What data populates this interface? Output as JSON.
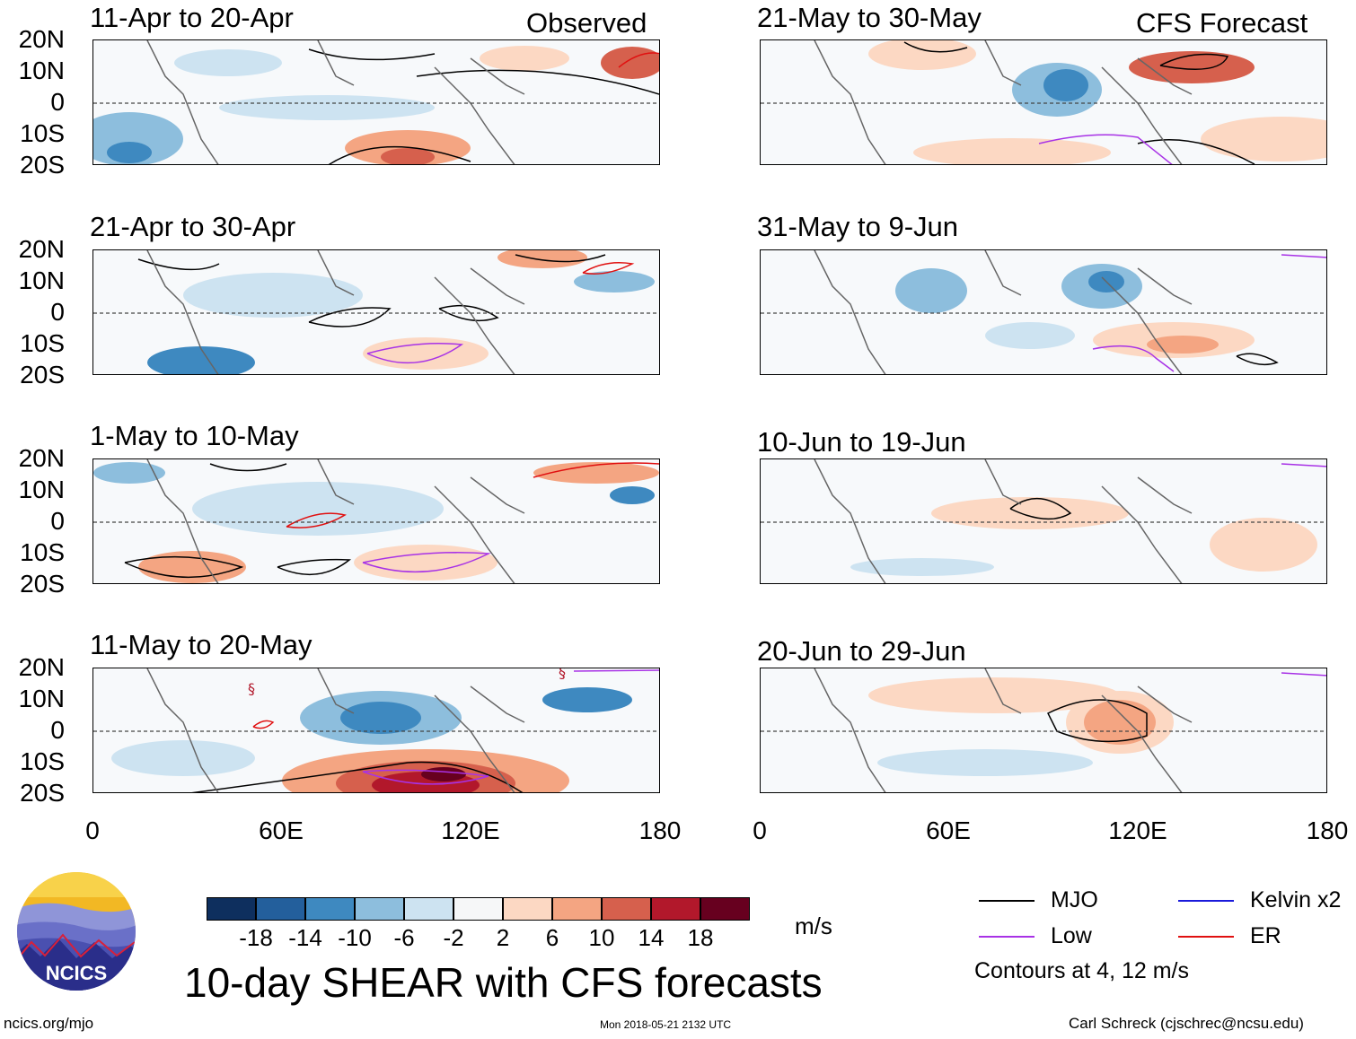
{
  "panels": [
    {
      "title": "11-Apr to 20-Apr",
      "corner": "Observed"
    },
    {
      "title": "21-Apr to 30-Apr"
    },
    {
      "title": "1-May to 10-May"
    },
    {
      "title": "11-May to 20-May"
    },
    {
      "title": "21-May to 30-May",
      "corner": "CFS Forecast"
    },
    {
      "title": "31-May to 9-Jun"
    },
    {
      "title": "10-Jun to 19-Jun"
    },
    {
      "title": "20-Jun to 29-Jun"
    }
  ],
  "y_labels": [
    "20N",
    "10N",
    "0",
    "10S",
    "20S"
  ],
  "x_labels": [
    "0",
    "60E",
    "120E",
    "180"
  ],
  "colorbar": {
    "colors": [
      "#0e2f5e",
      "#235f9c",
      "#3e89c0",
      "#8dbedd",
      "#cde3f1",
      "#f6f7f8",
      "#fcd8c3",
      "#f4a582",
      "#d6604d",
      "#b2182b",
      "#67001f"
    ],
    "labels": [
      "-18",
      "-14",
      "-10",
      "-6",
      "-2",
      "2",
      "6",
      "10",
      "14",
      "18"
    ],
    "unit": "m/s"
  },
  "legend": {
    "items": [
      {
        "label": "MJO",
        "color": "#000000"
      },
      {
        "label": "Kelvin x2",
        "color": "#1a1adb"
      },
      {
        "label": "Low",
        "color": "#a832e6"
      },
      {
        "label": "ER",
        "color": "#e01010"
      }
    ],
    "note": "Contours at 4, 12 m/s"
  },
  "main_title": "10-day SHEAR with CFS forecasts",
  "logo_text": "NCICS",
  "url": "ncics.org/mjo",
  "timestamp": "Mon 2018-05-21 2132 UTC",
  "author": "Carl Schreck (cjschrec@ncsu.edu)"
}
